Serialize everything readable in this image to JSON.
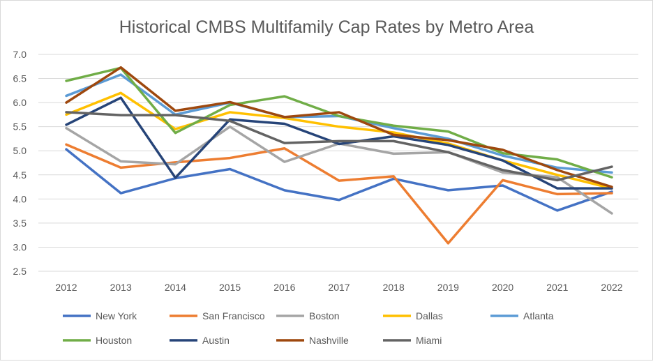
{
  "chart_data": {
    "type": "line",
    "title": "Historical CMBS Multifamily Cap Rates by Metro Area",
    "xlabel": "",
    "ylabel": "",
    "ylim": [
      2.5,
      7.0
    ],
    "yticks": [
      "2.5",
      "3.0",
      "3.5",
      "4.0",
      "4.5",
      "5.0",
      "5.5",
      "6.0",
      "6.5",
      "7.0"
    ],
    "grid": true,
    "legend": "bottom",
    "categories": [
      "2012",
      "2013",
      "2014",
      "2015",
      "2016",
      "2017",
      "2018",
      "2019",
      "2020",
      "2021",
      "2022"
    ],
    "series": [
      {
        "name": "New York",
        "color": "#4472C4",
        "values": [
          5.03,
          4.12,
          4.43,
          4.62,
          4.18,
          3.98,
          4.42,
          4.18,
          4.28,
          3.76,
          4.15
        ]
      },
      {
        "name": "San Francisco",
        "color": "#ED7D31",
        "values": [
          5.13,
          4.65,
          4.76,
          4.85,
          5.05,
          4.38,
          4.47,
          3.08,
          4.39,
          4.1,
          4.12
        ]
      },
      {
        "name": "Boston",
        "color": "#A5A5A5",
        "values": [
          5.47,
          4.78,
          4.72,
          5.5,
          4.77,
          5.15,
          4.94,
          4.97,
          4.55,
          4.45,
          3.7
        ]
      },
      {
        "name": "Dallas",
        "color": "#FFC000",
        "values": [
          5.75,
          6.2,
          5.45,
          5.8,
          5.68,
          5.5,
          5.38,
          5.15,
          4.8,
          4.5,
          4.22
        ]
      },
      {
        "name": "Atlanta",
        "color": "#5B9BD5",
        "values": [
          6.14,
          6.58,
          5.75,
          6.0,
          5.7,
          5.72,
          5.47,
          5.25,
          4.9,
          4.65,
          4.55
        ]
      },
      {
        "name": "Houston",
        "color": "#70AD47",
        "values": [
          6.45,
          6.72,
          5.37,
          5.95,
          6.13,
          5.72,
          5.52,
          5.4,
          4.95,
          4.82,
          4.45
        ]
      },
      {
        "name": "Austin",
        "color": "#264478",
        "values": [
          5.54,
          6.1,
          4.44,
          5.65,
          5.56,
          5.14,
          5.3,
          5.12,
          4.8,
          4.22,
          4.22
        ]
      },
      {
        "name": "Nashville",
        "color": "#9E480E",
        "values": [
          6.0,
          6.73,
          5.83,
          6.01,
          5.7,
          5.8,
          5.33,
          5.22,
          5.02,
          4.6,
          4.25
        ]
      },
      {
        "name": "Miami",
        "color": "#636363",
        "values": [
          5.8,
          5.74,
          5.74,
          5.62,
          5.16,
          5.2,
          5.2,
          4.97,
          4.6,
          4.39,
          4.67
        ]
      }
    ]
  }
}
